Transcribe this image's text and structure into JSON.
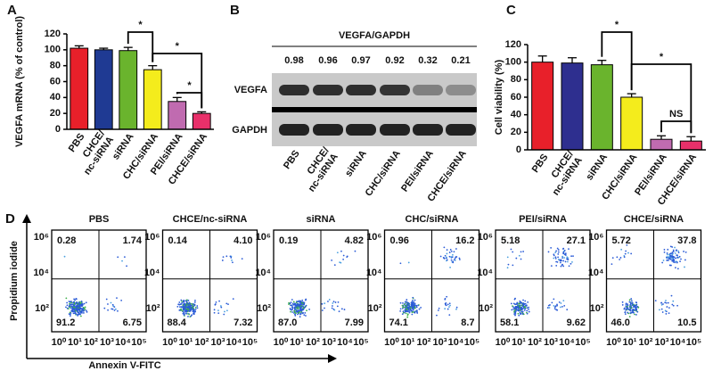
{
  "chart_data": [
    {
      "type": "bar",
      "panel": "A",
      "ylabel": "VEGFA mRNA (% of control)",
      "categories": [
        "PBS",
        "CHCE/\nnc-siRNA",
        "siRNA",
        "CHC/siRNA",
        "PEI/siRNA",
        "CHCE/siRNA"
      ],
      "values": [
        102,
        100,
        99,
        75,
        35,
        20
      ],
      "errors": [
        3,
        2,
        4,
        5,
        5,
        2
      ],
      "colors": [
        "#e8202a",
        "#1f3a93",
        "#6ab42d",
        "#f4ec1c",
        "#c06bb0",
        "#e8306a"
      ],
      "ylim": [
        0,
        120
      ],
      "yticks": [
        0,
        20,
        40,
        60,
        80,
        100,
        120
      ],
      "significance": [
        "*",
        "*",
        "*"
      ]
    },
    {
      "type": "bar",
      "panel": "C",
      "ylabel": "Cell viability (%)",
      "categories": [
        "PBS",
        "CHCE/\nnc-siRNA",
        "siRNA",
        "CHC/siRNA",
        "PEI/siRNA",
        "CHCE/siRNA"
      ],
      "values": [
        100,
        99,
        97,
        60,
        12,
        10
      ],
      "errors": [
        7,
        6,
        5,
        4,
        4,
        5
      ],
      "colors": [
        "#e8202a",
        "#2e2f8f",
        "#6ab42d",
        "#f4ec1c",
        "#c06bb0",
        "#e8306a"
      ],
      "ylim": [
        0,
        120
      ],
      "yticks": [
        0,
        20,
        40,
        60,
        80,
        100,
        120
      ],
      "significance": [
        "*",
        "*",
        "NS"
      ]
    }
  ],
  "blot": {
    "panel": "B",
    "title": "VEGFA/GAPDH",
    "ratios": [
      0.98,
      0.96,
      0.97,
      0.92,
      0.32,
      0.21
    ],
    "rows": [
      "VEGFA",
      "GAPDH"
    ],
    "lanes": [
      "PBS",
      "CHCE/\nnc-siRNA",
      "siRNA",
      "CHC/siRNA",
      "PEI/siRNA",
      "CHCE/siRNA"
    ]
  },
  "flow": {
    "panel": "D",
    "ylabel": "Propidium iodide",
    "xlabel": "Annexin V-FITC",
    "yticks": [
      "10⁶",
      "10⁴",
      "10²"
    ],
    "xticks": [
      "10⁰",
      "10¹",
      "10²",
      "10³",
      "10⁴",
      "10⁵"
    ],
    "plots": [
      {
        "title": "PBS",
        "quadrants": [
          "0.28",
          "1.74",
          "91.2",
          "6.75"
        ]
      },
      {
        "title": "CHCE/nc-siRNA",
        "quadrants": [
          "0.14",
          "4.10",
          "88.4",
          "7.32"
        ]
      },
      {
        "title": "siRNA",
        "quadrants": [
          "0.19",
          "4.82",
          "87.0",
          "7.99"
        ]
      },
      {
        "title": "CHC/siRNA",
        "quadrants": [
          "0.96",
          "16.2",
          "74.1",
          "8.7"
        ]
      },
      {
        "title": "PEI/siRNA",
        "quadrants": [
          "5.18",
          "27.1",
          "58.1",
          "9.62"
        ]
      },
      {
        "title": "CHCE/siRNA",
        "quadrants": [
          "5.72",
          "37.8",
          "46.0",
          "10.5"
        ]
      }
    ]
  }
}
